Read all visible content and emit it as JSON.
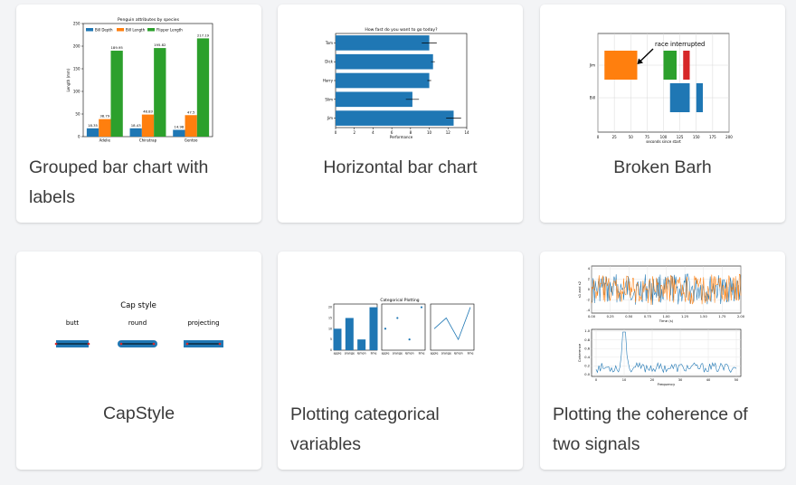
{
  "cards": [
    {
      "title": "Grouped bar chart with labels",
      "chart": {
        "type": "bar",
        "title": "Penguin attributes by species",
        "ylabel": "Length (mm)",
        "ylim": [
          0,
          250
        ],
        "yticks": [
          "0",
          "50",
          "100",
          "150",
          "200",
          "250"
        ],
        "categories": [
          "Adelie",
          "Chinstrap",
          "Gentoo"
        ],
        "series": [
          {
            "name": "Bill Depth",
            "color": "#1f77b4",
            "values": [
              18.35,
              18.43,
              14.98
            ],
            "labels": [
              "18.35",
              "18.43",
              "14.98"
            ]
          },
          {
            "name": "Bill Length",
            "color": "#ff7f0e",
            "values": [
              38.79,
              48.83,
              47.5
            ],
            "labels": [
              "38.79",
              "48.83",
              "47.5"
            ]
          },
          {
            "name": "Flipper Length",
            "color": "#2ca02c",
            "values": [
              189.95,
              195.82,
              217.19
            ],
            "labels": [
              "189.95",
              "195.82",
              "217.19"
            ]
          }
        ]
      }
    },
    {
      "title": "Horizontal bar chart",
      "chart": {
        "type": "bar",
        "title": "How fast do you want to go today?",
        "xlabel": "Performance",
        "xlim": [
          0,
          14
        ],
        "xticks": [
          "0",
          "2",
          "4",
          "6",
          "8",
          "10",
          "12",
          "14"
        ],
        "color": "#1f77b4",
        "people": [
          "Tom",
          "Dick",
          "Harry",
          "Slim",
          "Jim"
        ],
        "values": [
          10.0,
          10.4,
          10.0,
          8.2,
          12.6
        ],
        "errors": [
          0.8,
          0.2,
          0.2,
          0.7,
          0.8
        ]
      }
    },
    {
      "title": "Broken Barh",
      "chart": {
        "type": "bar",
        "annotation": "race interrupted",
        "xlabel": "seconds since start",
        "xlim": [
          0,
          200
        ],
        "xticks": [
          "0",
          "25",
          "50",
          "75",
          "100",
          "125",
          "150",
          "175",
          "200"
        ],
        "rows": [
          {
            "label": "Jim",
            "segments": [
              {
                "start": 10,
                "width": 50,
                "color": "#ff7f0e"
              },
              {
                "start": 100,
                "width": 20,
                "color": "#2ca02c"
              },
              {
                "start": 130,
                "width": 10,
                "color": "#d62728"
              }
            ]
          },
          {
            "label": "Bill",
            "segments": [
              {
                "start": 110,
                "width": 30,
                "color": "#1f77b4"
              },
              {
                "start": 150,
                "width": 10,
                "color": "#1f77b4"
              }
            ]
          }
        ]
      }
    },
    {
      "title": "CapStyle",
      "chart": {
        "heading": "Cap style",
        "styles": [
          "butt",
          "round",
          "projecting"
        ],
        "line_color": "#1f77b4",
        "center_color": "#000000",
        "end_color": "#d62728"
      }
    },
    {
      "title": "Plotting categorical variables",
      "chart": {
        "type": "bar",
        "title": "Categorical Plotting",
        "categories": [
          "apple",
          "orange",
          "lemon",
          "lime"
        ],
        "values": [
          10,
          15,
          5,
          20
        ],
        "yticks": [
          "0",
          "5",
          "10",
          "15",
          "20"
        ],
        "color": "#1f77b4"
      }
    },
    {
      "title": "Plotting the coherence of two signals",
      "chart": {
        "type": "line",
        "top": {
          "xlabel": "Time (s)",
          "ylabel": "s1 and s2",
          "xticks": [
            "0.00",
            "0.25",
            "0.50",
            "0.75",
            "1.00",
            "1.25",
            "1.50",
            "1.75",
            "2.00"
          ],
          "yticks": [
            "4",
            "2",
            "0",
            "-2",
            "-4"
          ],
          "colors": [
            "#1f77b4",
            "#ff7f0e"
          ]
        },
        "bottom": {
          "xlabel": "Frequency",
          "ylabel": "Coherence",
          "xticks": [
            "0",
            "10",
            "20",
            "30",
            "40",
            "50"
          ],
          "yticks": [
            "1.0",
            "0.8",
            "0.6",
            "0.4",
            "0.2",
            "0.0"
          ],
          "color": "#1f77b4"
        }
      }
    }
  ]
}
